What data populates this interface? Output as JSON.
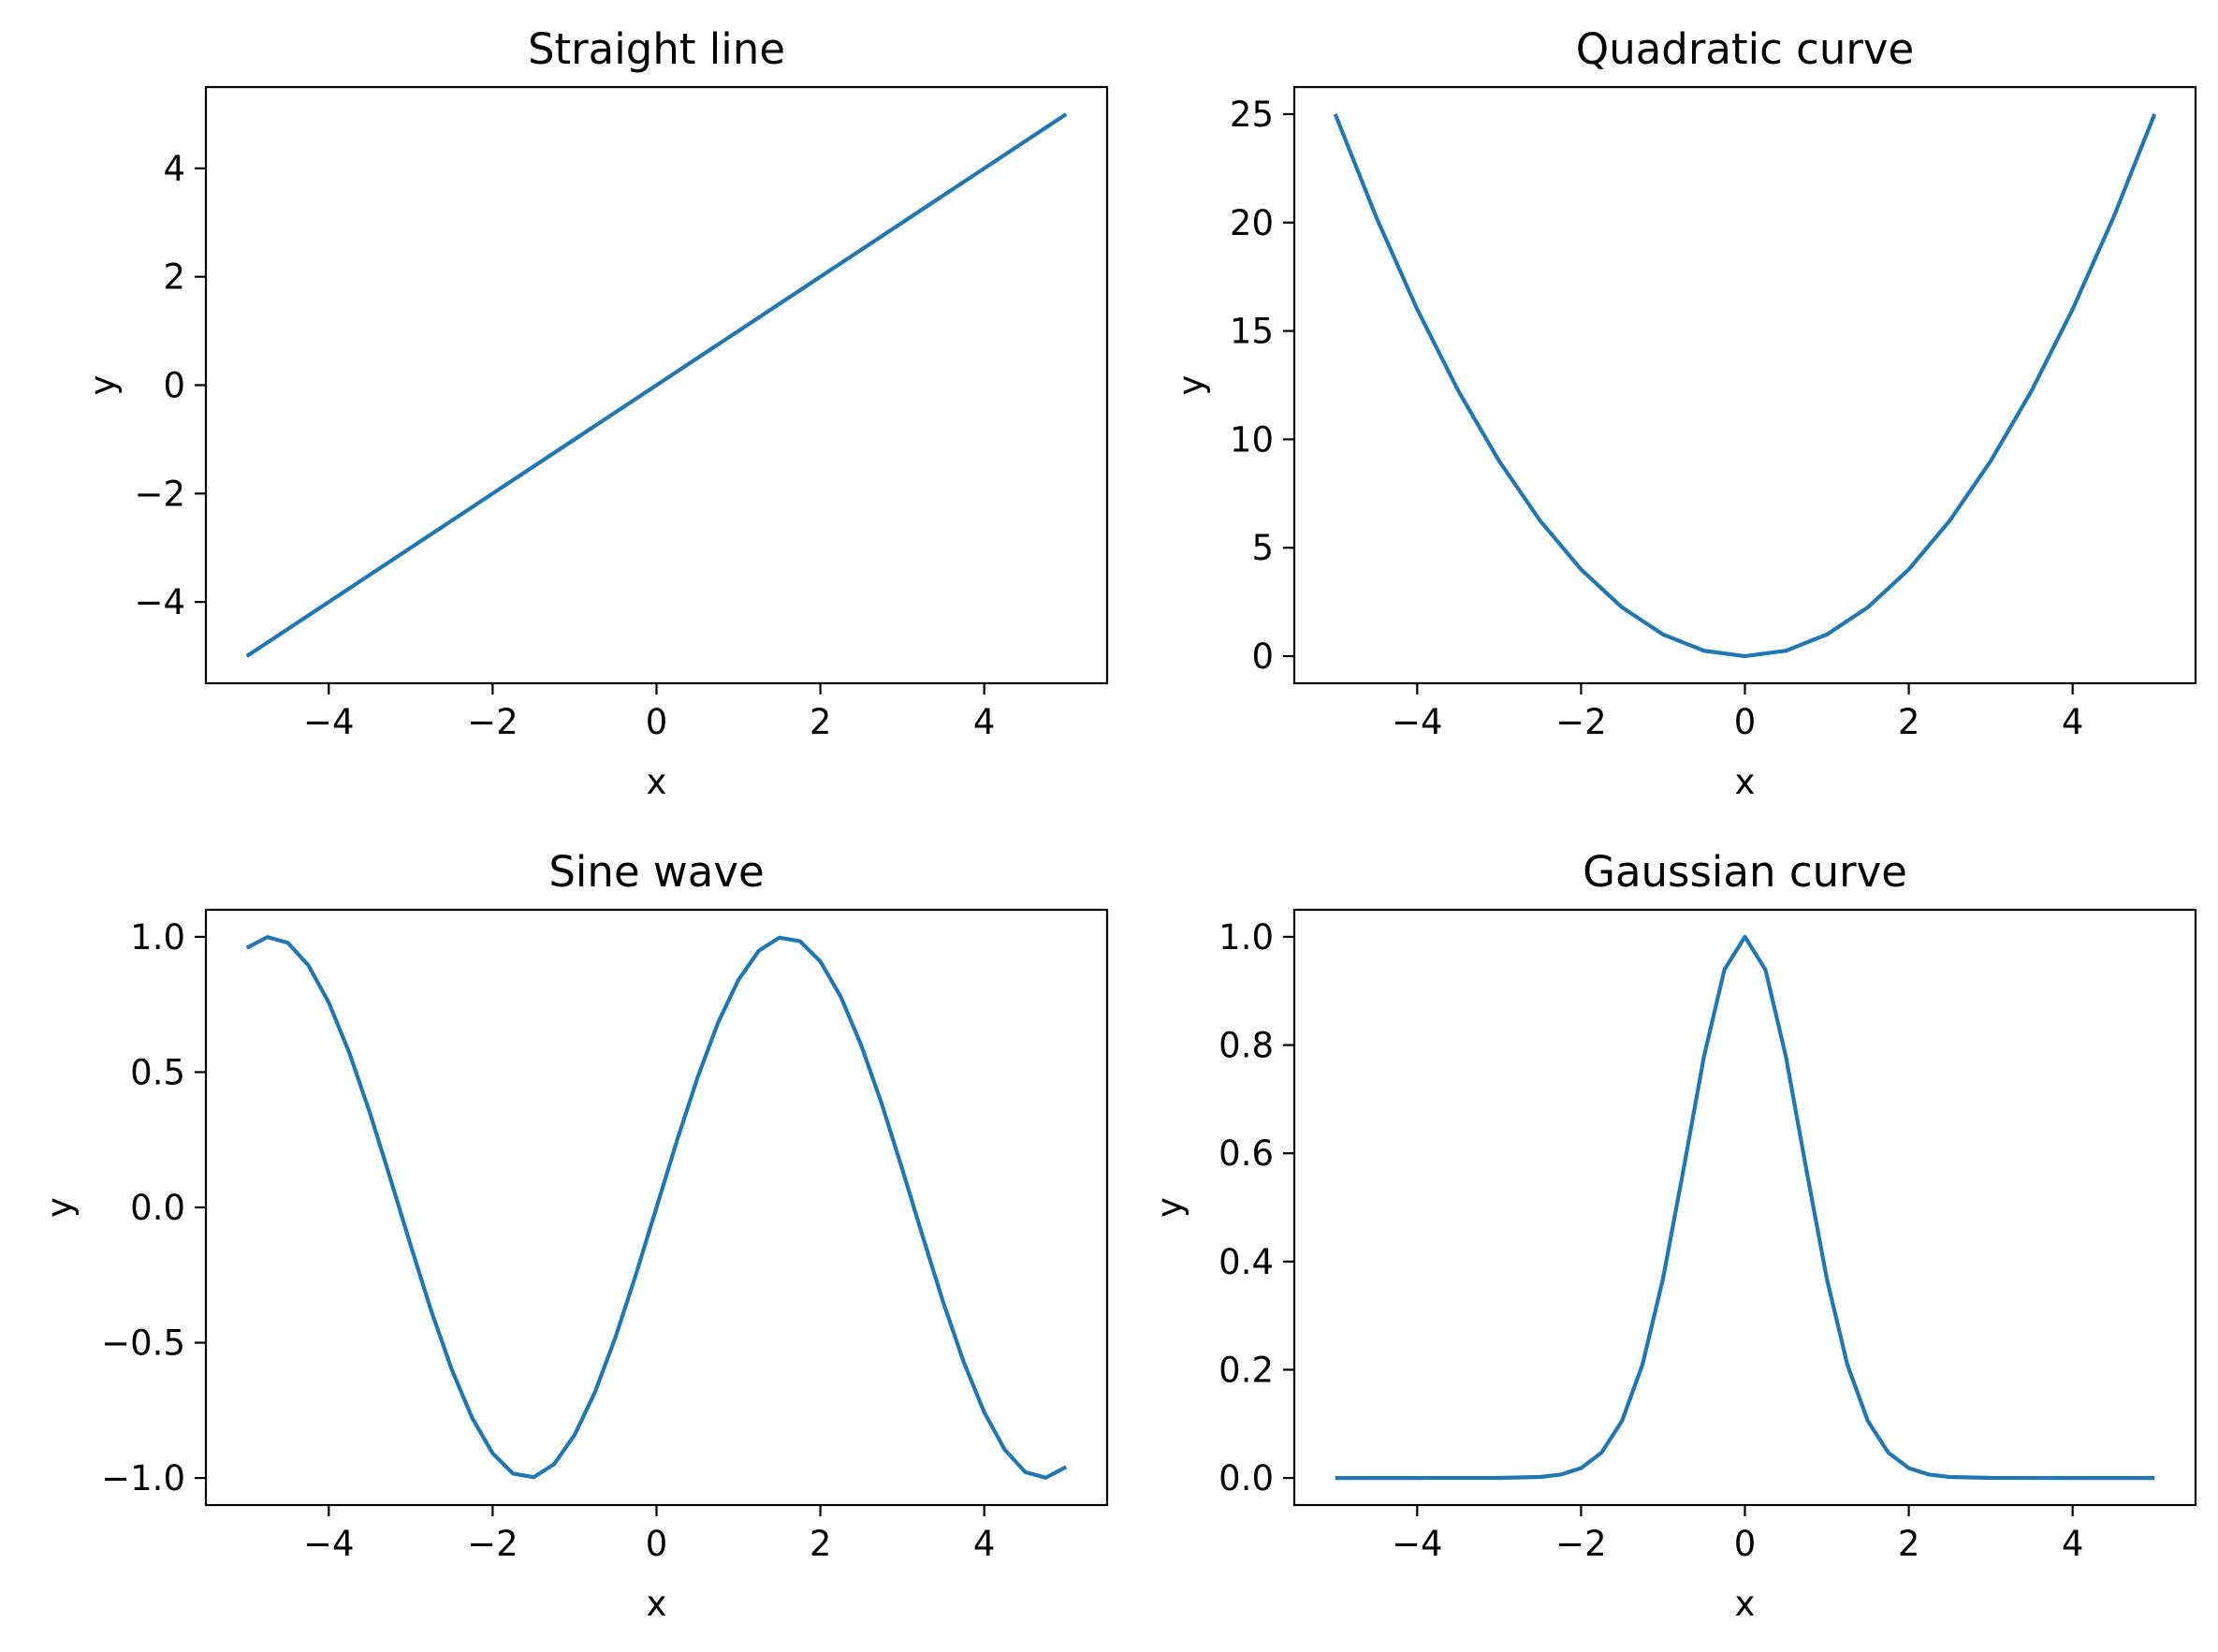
{
  "chart_data": [
    {
      "type": "line",
      "title": "Straight line",
      "xlabel": "x",
      "ylabel": "y",
      "xlim": [
        -5.5,
        5.5
      ],
      "ylim": [
        -5.5,
        5.5
      ],
      "xticks": [
        -4,
        -2,
        0,
        2,
        4
      ],
      "xtick_labels": [
        "−4",
        "−2",
        "0",
        "2",
        "4"
      ],
      "yticks": [
        -4,
        -2,
        0,
        2,
        4
      ],
      "ytick_labels": [
        "−4",
        "−2",
        "0",
        "2",
        "4"
      ],
      "grid": false,
      "color": "#1f77b4",
      "series": [
        {
          "x": [
            -5,
            -2.5,
            0,
            2.5,
            5
          ],
          "y": [
            -5,
            -2.5,
            0,
            2.5,
            5
          ]
        }
      ]
    },
    {
      "type": "line",
      "title": "Quadratic curve",
      "xlabel": "x",
      "ylabel": "y",
      "xlim": [
        -5.5,
        5.5
      ],
      "ylim": [
        -1.25,
        26.25
      ],
      "xticks": [
        -4,
        -2,
        0,
        2,
        4
      ],
      "xtick_labels": [
        "−4",
        "−2",
        "0",
        "2",
        "4"
      ],
      "yticks": [
        0,
        5,
        10,
        15,
        20,
        25
      ],
      "ytick_labels": [
        "0",
        "5",
        "10",
        "15",
        "20",
        "25"
      ],
      "grid": false,
      "color": "#1f77b4",
      "series": [
        {
          "x": [
            -5,
            -4.5,
            -4,
            -3.5,
            -3,
            -2.5,
            -2,
            -1.5,
            -1,
            -0.5,
            0,
            0.5,
            1,
            1.5,
            2,
            2.5,
            3,
            3.5,
            4,
            4.5,
            5
          ],
          "y": [
            25,
            20.25,
            16,
            12.25,
            9,
            6.25,
            4,
            2.25,
            1,
            0.25,
            0,
            0.25,
            1,
            2.25,
            4,
            6.25,
            9,
            12.25,
            16,
            20.25,
            25
          ]
        }
      ]
    },
    {
      "type": "line",
      "title": "Sine wave",
      "xlabel": "x",
      "ylabel": "y",
      "xlim": [
        -5.5,
        5.5
      ],
      "ylim": [
        -1.1,
        1.1
      ],
      "xticks": [
        -4,
        -2,
        0,
        2,
        4
      ],
      "xtick_labels": [
        "−4",
        "−2",
        "0",
        "2",
        "4"
      ],
      "yticks": [
        -1.0,
        -0.5,
        0.0,
        0.5,
        1.0
      ],
      "ytick_labels": [
        "−1.0",
        "−0.5",
        "0.0",
        "0.5",
        "1.0"
      ],
      "grid": false,
      "color": "#1f77b4",
      "series": [
        {
          "x": [
            -5,
            -4.75,
            -4.5,
            -4.25,
            -4,
            -3.75,
            -3.5,
            -3.25,
            -3,
            -2.75,
            -2.5,
            -2.25,
            -2,
            -1.75,
            -1.5,
            -1.25,
            -1,
            -0.75,
            -0.5,
            -0.25,
            0,
            0.25,
            0.5,
            0.75,
            1,
            1.25,
            1.5,
            1.75,
            2,
            2.25,
            2.5,
            2.75,
            3,
            3.25,
            3.5,
            3.75,
            4,
            4.25,
            4.5,
            4.75,
            5
          ],
          "y": [
            0.959,
            0.999,
            0.978,
            0.895,
            0.757,
            0.572,
            0.351,
            0.108,
            -0.141,
            -0.382,
            -0.598,
            -0.778,
            -0.909,
            -0.984,
            -0.997,
            -0.949,
            -0.841,
            -0.682,
            -0.479,
            -0.247,
            0.0,
            0.247,
            0.479,
            0.682,
            0.841,
            0.949,
            0.997,
            0.984,
            0.909,
            0.778,
            0.598,
            0.382,
            0.141,
            -0.108,
            -0.351,
            -0.572,
            -0.757,
            -0.895,
            -0.978,
            -0.999,
            -0.959
          ]
        }
      ]
    },
    {
      "type": "line",
      "title": "Gaussian curve",
      "xlabel": "x",
      "ylabel": "y",
      "xlim": [
        -5.5,
        5.5
      ],
      "ylim": [
        -0.05,
        1.05
      ],
      "xticks": [
        -4,
        -2,
        0,
        2,
        4
      ],
      "xtick_labels": [
        "−4",
        "−2",
        "0",
        "2",
        "4"
      ],
      "yticks": [
        0.0,
        0.2,
        0.4,
        0.6,
        0.8,
        1.0
      ],
      "ytick_labels": [
        "0.0",
        "0.2",
        "0.4",
        "0.6",
        "0.8",
        "1.0"
      ],
      "grid": false,
      "color": "#1f77b4",
      "series": [
        {
          "x": [
            -5,
            -4,
            -3,
            -2.5,
            -2.25,
            -2,
            -1.75,
            -1.5,
            -1.25,
            -1,
            -0.75,
            -0.5,
            -0.25,
            0,
            0.25,
            0.5,
            0.75,
            1,
            1.25,
            1.5,
            1.75,
            2,
            2.25,
            2.5,
            3,
            4,
            5
          ],
          "y": [
            0.0,
            0.0,
            0.0001,
            0.0019,
            0.0063,
            0.0183,
            0.0468,
            0.1054,
            0.2096,
            0.3679,
            0.5698,
            0.7788,
            0.9394,
            1.0,
            0.9394,
            0.7788,
            0.5698,
            0.3679,
            0.2096,
            0.1054,
            0.0468,
            0.0183,
            0.0063,
            0.0019,
            0.0001,
            0.0,
            0.0
          ]
        }
      ]
    }
  ]
}
